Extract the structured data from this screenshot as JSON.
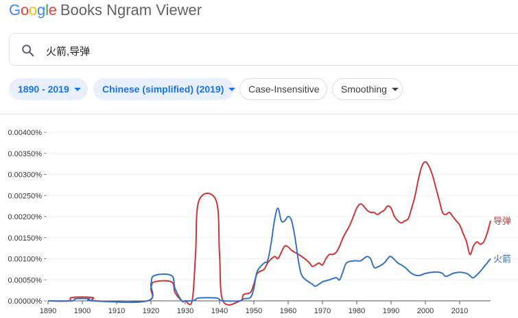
{
  "header": {
    "logo_letters": [
      {
        "char": "G",
        "color": "#4285f4"
      },
      {
        "char": "o",
        "color": "#ea4335"
      },
      {
        "char": "o",
        "color": "#fbbc05"
      },
      {
        "char": "g",
        "color": "#4285f4"
      },
      {
        "char": "l",
        "color": "#34a853"
      },
      {
        "char": "e",
        "color": "#ea4335"
      }
    ],
    "title": "Books Ngram Viewer"
  },
  "search": {
    "value": "火箭,导弹",
    "icon": "search-icon"
  },
  "filters": {
    "year_range": "1890 - 2019",
    "corpus": "Chinese (simplified) (2019)",
    "case": "Case-Insensitive",
    "smoothing": "Smoothing"
  },
  "colors": {
    "accent": "#1a73e8",
    "series_missile": "#cc3333",
    "series_rocket": "#3172c4"
  },
  "chart_data": {
    "type": "line",
    "xlim": [
      1890,
      2019
    ],
    "ylim": [
      0,
      0.004
    ],
    "x_ticks": [
      "1890",
      "1900",
      "1910",
      "1920",
      "1930",
      "1940",
      "1950",
      "1960",
      "1970",
      "1980",
      "1990",
      "2000",
      "2010"
    ],
    "y_ticks": [
      "0.00000%",
      "0.00050%",
      "0.00100%",
      "0.00150%",
      "0.00200%",
      "0.00250%",
      "0.00300%",
      "0.00350%",
      "0.00400%"
    ],
    "grid": true,
    "legend": "right end of lines",
    "series": [
      {
        "name": "导弹",
        "color": "#cc3333",
        "x": [
          1890,
          1896,
          1897,
          1903,
          1904,
          1919,
          1920,
          1921,
          1926,
          1927,
          1929,
          1930,
          1932,
          1933,
          1934,
          1939,
          1940,
          1941,
          1946,
          1947,
          1949,
          1950,
          1951,
          1953,
          1954,
          1956,
          1957,
          1958,
          1959,
          1960,
          1961,
          1962,
          1964,
          1966,
          1967,
          1968,
          1969,
          1970,
          1971,
          1972,
          1973,
          1974,
          1975,
          1976,
          1977,
          1978,
          1979,
          1980,
          1981,
          1982,
          1983,
          1984,
          1985,
          1986,
          1987,
          1988,
          1989,
          1990,
          1991,
          1992,
          1993,
          1994,
          1995,
          1996,
          1997,
          1998,
          1999,
          2000,
          2001,
          2002,
          2003,
          2004,
          2005,
          2006,
          2007,
          2008,
          2009,
          2010,
          2011,
          2012,
          2013,
          2014,
          2015,
          2016,
          2017,
          2018,
          2019
        ],
        "y": [
          0,
          0,
          8e-05,
          8e-05,
          0,
          0,
          0.0003,
          0.00045,
          0.00045,
          0.0002,
          0,
          0,
          0,
          0.0011,
          0.00238,
          0.00238,
          0.0011,
          0,
          0,
          0.00015,
          0.0002,
          0.0004,
          0.00065,
          0.00075,
          0.0009,
          0.00105,
          0.001,
          0.00115,
          0.0013,
          0.00128,
          0.0012,
          0.00115,
          0.00105,
          0.00092,
          0.00082,
          0.00085,
          0.0009,
          0.00085,
          0.001,
          0.0011,
          0.0011,
          0.00115,
          0.0013,
          0.0015,
          0.00165,
          0.0018,
          0.002,
          0.0022,
          0.0023,
          0.00225,
          0.00215,
          0.0021,
          0.0021,
          0.00205,
          0.0021,
          0.00215,
          0.00225,
          0.0022,
          0.002,
          0.0019,
          0.00185,
          0.0019,
          0.00195,
          0.0022,
          0.0025,
          0.0029,
          0.0032,
          0.0033,
          0.0032,
          0.003,
          0.0027,
          0.0024,
          0.0021,
          0.00205,
          0.0021,
          0.002,
          0.0019,
          0.0018,
          0.0016,
          0.0014,
          0.0011,
          0.0013,
          0.0014,
          0.00135,
          0.0014,
          0.0016,
          0.0019
        ]
      },
      {
        "name": "火箭",
        "color": "#3172c4",
        "x": [
          1890,
          1897,
          1898,
          1902,
          1903,
          1919,
          1920,
          1921,
          1926,
          1927,
          1929,
          1930,
          1932,
          1933,
          1934,
          1939,
          1940,
          1941,
          1946,
          1947,
          1949,
          1950,
          1951,
          1953,
          1954,
          1955,
          1956,
          1957,
          1958,
          1959,
          1960,
          1961,
          1962,
          1963,
          1964,
          1966,
          1967,
          1968,
          1970,
          1972,
          1974,
          1975,
          1976,
          1977,
          1979,
          1981,
          1982,
          1983,
          1984,
          1985,
          1986,
          1988,
          1989,
          1990,
          1992,
          1994,
          1996,
          1998,
          2000,
          2002,
          2004,
          2005,
          2006,
          2008,
          2010,
          2012,
          2013,
          2014,
          2016,
          2017,
          2018,
          2019
        ],
        "y": [
          0,
          0,
          5e-05,
          5e-05,
          0,
          0,
          0.0004,
          0.0006,
          0.0006,
          0.0003,
          0,
          0,
          0,
          3e-05,
          7e-05,
          7e-05,
          3e-05,
          0,
          0,
          5e-05,
          8e-05,
          0.0003,
          0.0007,
          0.0009,
          0.00095,
          0.00135,
          0.0019,
          0.0022,
          0.0019,
          0.0019,
          0.002,
          0.0019,
          0.0015,
          0.00095,
          0.0006,
          0.00045,
          0.0004,
          0.00035,
          0.00045,
          0.0005,
          0.00055,
          0.0005,
          0.0007,
          0.0009,
          0.00095,
          0.00095,
          0.001,
          0.00105,
          0.001,
          0.0008,
          0.0008,
          0.0009,
          0.001,
          0.00105,
          0.0009,
          0.0008,
          0.00065,
          0.0006,
          0.00065,
          0.00068,
          0.00068,
          0.00065,
          0.00058,
          0.00065,
          0.00068,
          0.00065,
          0.0006,
          0.00055,
          0.0007,
          0.0008,
          0.0009,
          0.001
        ]
      }
    ]
  }
}
